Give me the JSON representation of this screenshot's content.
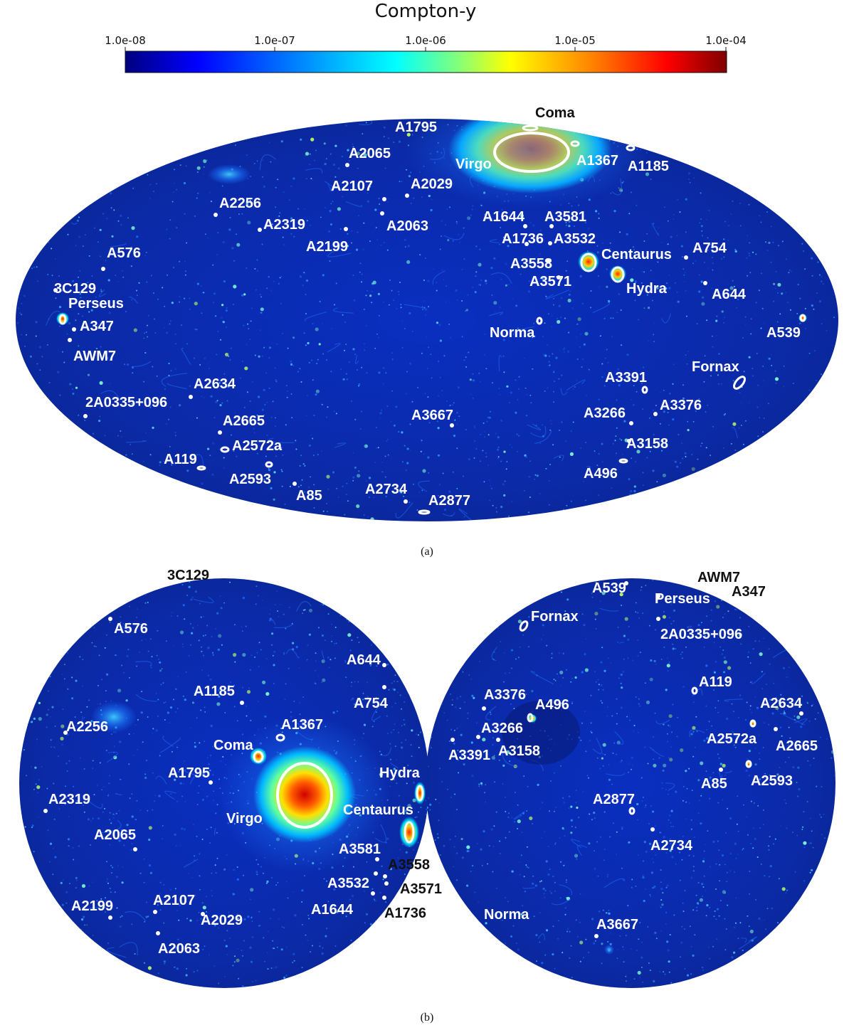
{
  "colorbar": {
    "title": "Compton-y",
    "ticks": [
      "1.0e-08",
      "1.0e-07",
      "1.0e-06",
      "1.0e-05",
      "1.0e-04"
    ],
    "colormap": [
      "#00007f",
      "#0000ff",
      "#007fff",
      "#00ffff",
      "#7fff7f",
      "#ffff00",
      "#ff7f00",
      "#ff0000",
      "#7f0000"
    ]
  },
  "panel_a": {
    "tag": "(a)",
    "clusters": [
      "Coma",
      "A1795",
      "A2065",
      "Virgo",
      "A1367",
      "A1185",
      "A2107",
      "A2029",
      "A2256",
      "A2319",
      "A2063",
      "A2199",
      "A1644",
      "A3581",
      "A1736",
      "A3532",
      "A3558",
      "A3571",
      "Centaurus",
      "Hydra",
      "A754",
      "A644",
      "A576",
      "3C129",
      "Perseus",
      "A347",
      "AWM7",
      "Norma",
      "A539",
      "Fornax",
      "A3391",
      "A2634",
      "2A0335+096",
      "A3667",
      "A3266",
      "A3376",
      "A2665",
      "A2572a",
      "A3158",
      "A119",
      "A2593",
      "A496",
      "A85",
      "A2734",
      "A2877"
    ]
  },
  "panel_b": {
    "tag": "(b)",
    "left_clusters": [
      "3C129",
      "A576",
      "A644",
      "A754",
      "A1185",
      "A2256",
      "A1367",
      "Coma",
      "A1795",
      "Hydra",
      "A2319",
      "Virgo",
      "Centaurus",
      "A2065",
      "A3581",
      "A3558",
      "A3532",
      "A3571",
      "A2199",
      "A2107",
      "A2029",
      "A1644",
      "A1736",
      "A2063"
    ],
    "right_clusters": [
      "AWM7",
      "A539",
      "A347",
      "Perseus",
      "Fornax",
      "2A0335+096",
      "A119",
      "A2634",
      "A3376",
      "A496",
      "A3266",
      "A2572a",
      "A2665",
      "A3391",
      "A3158",
      "A85",
      "A2593",
      "A2877",
      "A2734",
      "Norma",
      "A3667"
    ]
  }
}
